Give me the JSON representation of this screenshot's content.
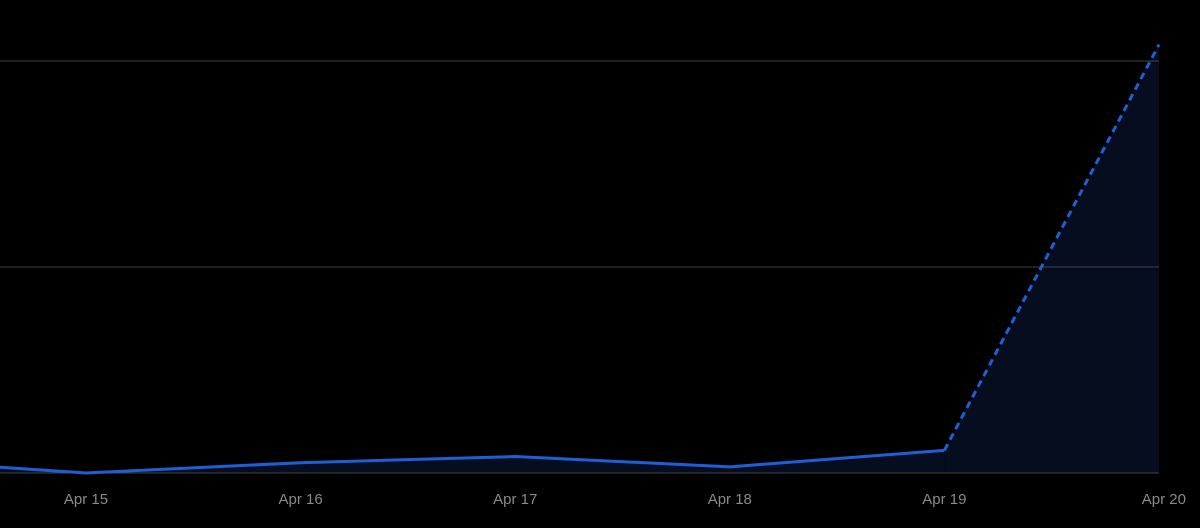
{
  "chart_data": {
    "type": "line",
    "categories": [
      null,
      "Apr 15",
      "Apr 16",
      "Apr 17",
      "Apr 18",
      "Apr 19",
      "Apr 20"
    ],
    "series": [
      {
        "color": "#1f5fd6",
        "style": "solid",
        "values": [
          0.07,
          0,
          0.05,
          0.08,
          0.03,
          0.11,
          null
        ]
      },
      {
        "color": "#1f5fd6",
        "style": "dashed",
        "values": [
          null,
          null,
          null,
          null,
          null,
          0.11,
          2.08
        ]
      }
    ],
    "area_color": "#050d1e",
    "ylim": [
      0,
      2
    ],
    "yticks": [
      0,
      1,
      2
    ],
    "grid": true
  }
}
